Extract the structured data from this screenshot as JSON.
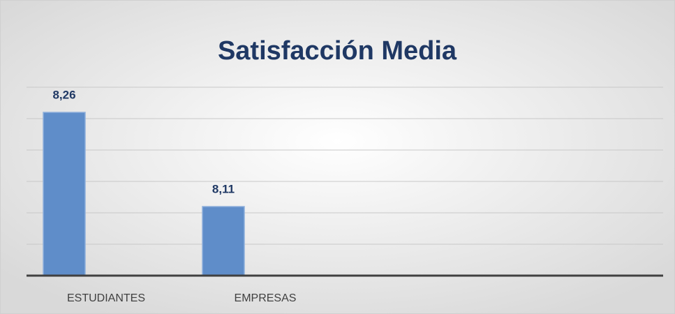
{
  "chart_data": {
    "type": "bar",
    "title": "Satisfacción Media",
    "categories": [
      "ESTUDIANTES",
      "EMPRESAS"
    ],
    "values": [
      8.26,
      8.11
    ],
    "value_labels": [
      "8,26",
      "8,11"
    ],
    "color": "#5f8dc9",
    "ylim": [
      8,
      8.3
    ],
    "yticks": [
      8,
      8.05,
      8.1,
      8.15,
      8.2,
      8.25,
      8.3
    ],
    "grid": true
  }
}
